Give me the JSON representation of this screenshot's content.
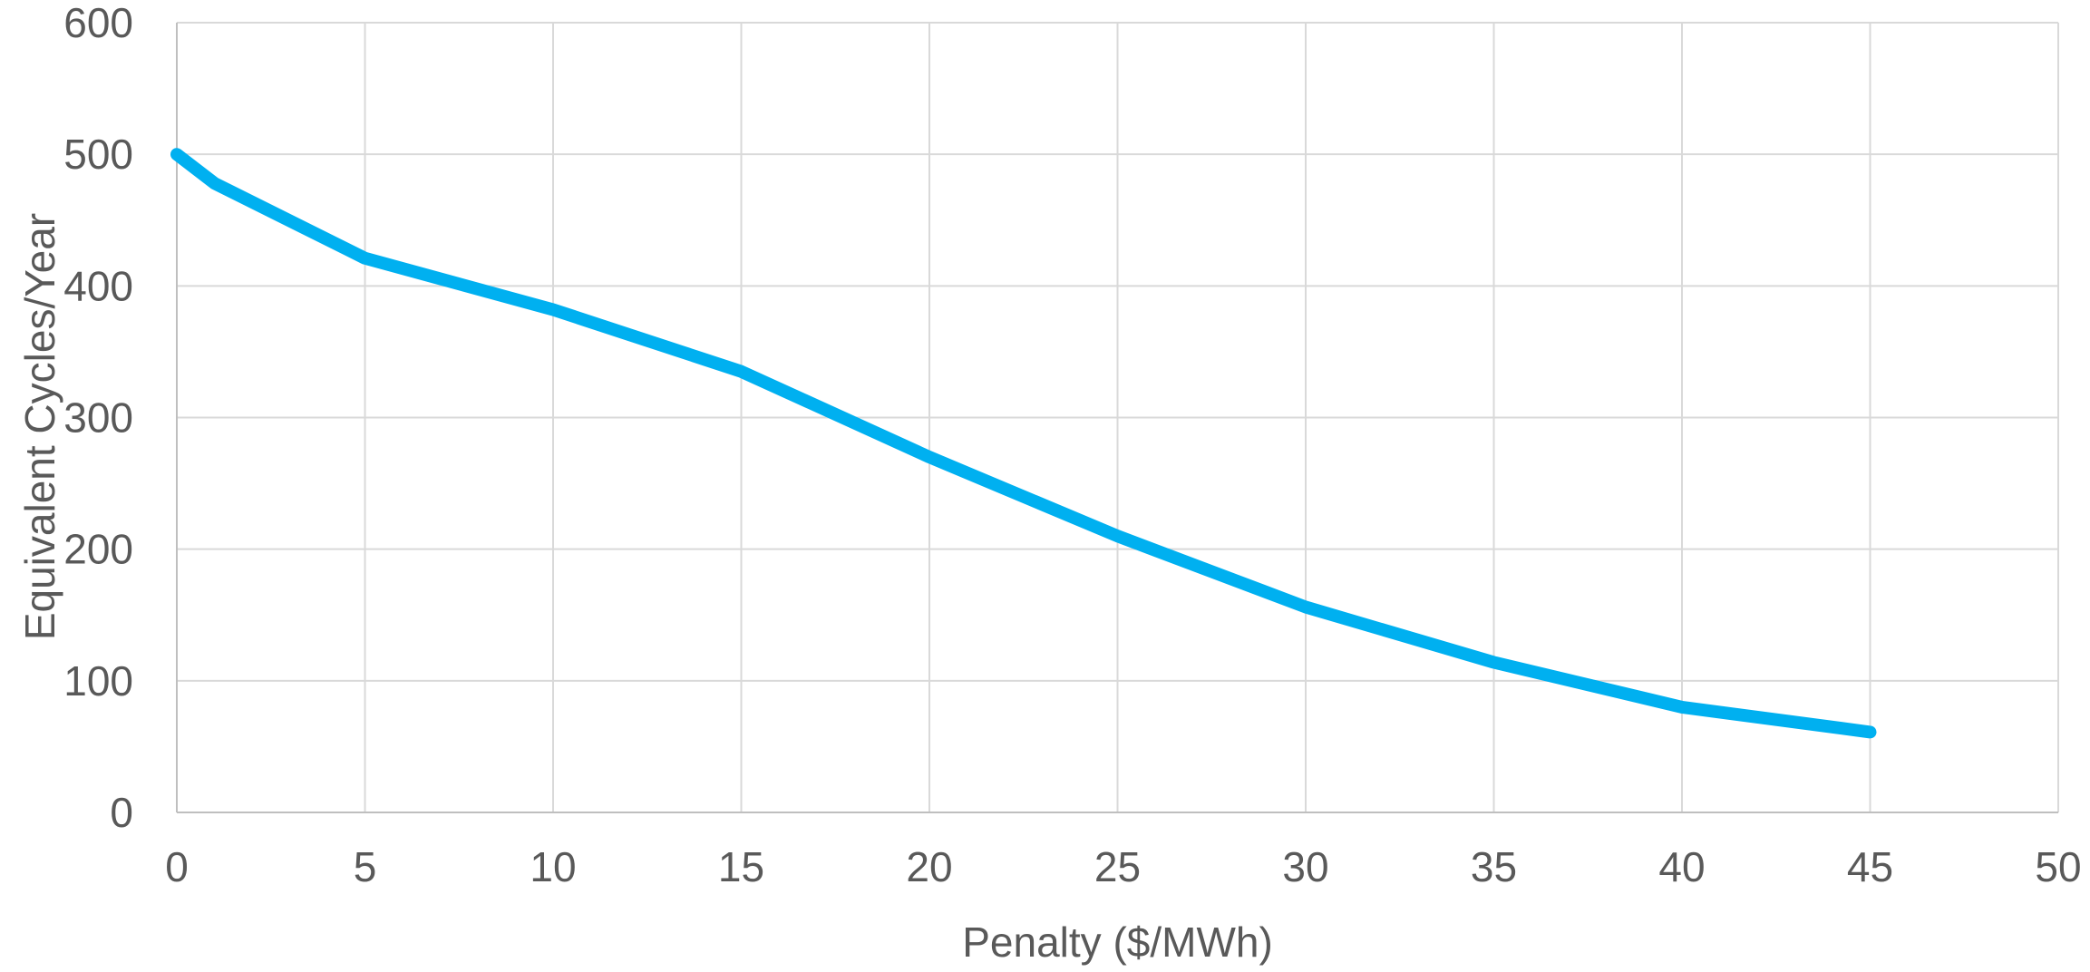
{
  "chart_data": {
    "type": "line",
    "xlabel": "Penalty ($/MWh)",
    "ylabel": "Equivalent Cycles/Year",
    "xlim": [
      0,
      50
    ],
    "ylim": [
      0,
      600
    ],
    "x_ticks": [
      "0",
      "5",
      "10",
      "15",
      "20",
      "25",
      "30",
      "35",
      "40",
      "45",
      "50"
    ],
    "y_ticks": [
      "0",
      "100",
      "200",
      "300",
      "400",
      "500",
      "600"
    ],
    "grid": true,
    "legend": "none",
    "series": [
      {
        "color": "#00B0F0",
        "x": [
          0,
          1,
          5,
          10,
          15,
          20,
          25,
          30,
          35,
          40,
          45
        ],
        "y": [
          500,
          478,
          421,
          382,
          335,
          270,
          210,
          156,
          114,
          80,
          61
        ]
      }
    ]
  }
}
